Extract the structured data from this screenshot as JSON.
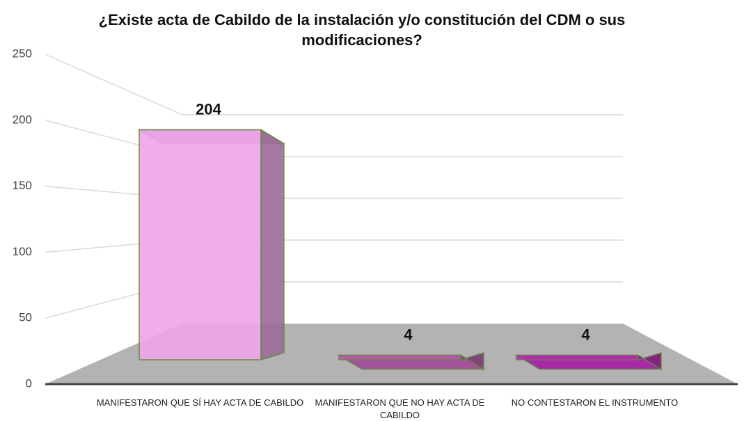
{
  "chart_data": {
    "type": "bar3d",
    "title": "¿Existe acta de Cabildo de la instalación y/o constitución del CDM o sus modificaciones?",
    "categories": [
      "MANIFESTARON QUE SÍ HAY ACTA DE CABILDO",
      "MANIFESTARON QUE NO HAY ACTA DE CABILDO",
      "NO CONTESTARON EL INSTRUMENTO"
    ],
    "values": [
      204,
      4,
      4
    ],
    "colors": [
      "#f0a4ea",
      "#c254b4",
      "#c81cc4"
    ],
    "ylim": [
      0,
      250
    ],
    "yticks": [
      0,
      50,
      100,
      150,
      200,
      250
    ],
    "grid": true
  }
}
